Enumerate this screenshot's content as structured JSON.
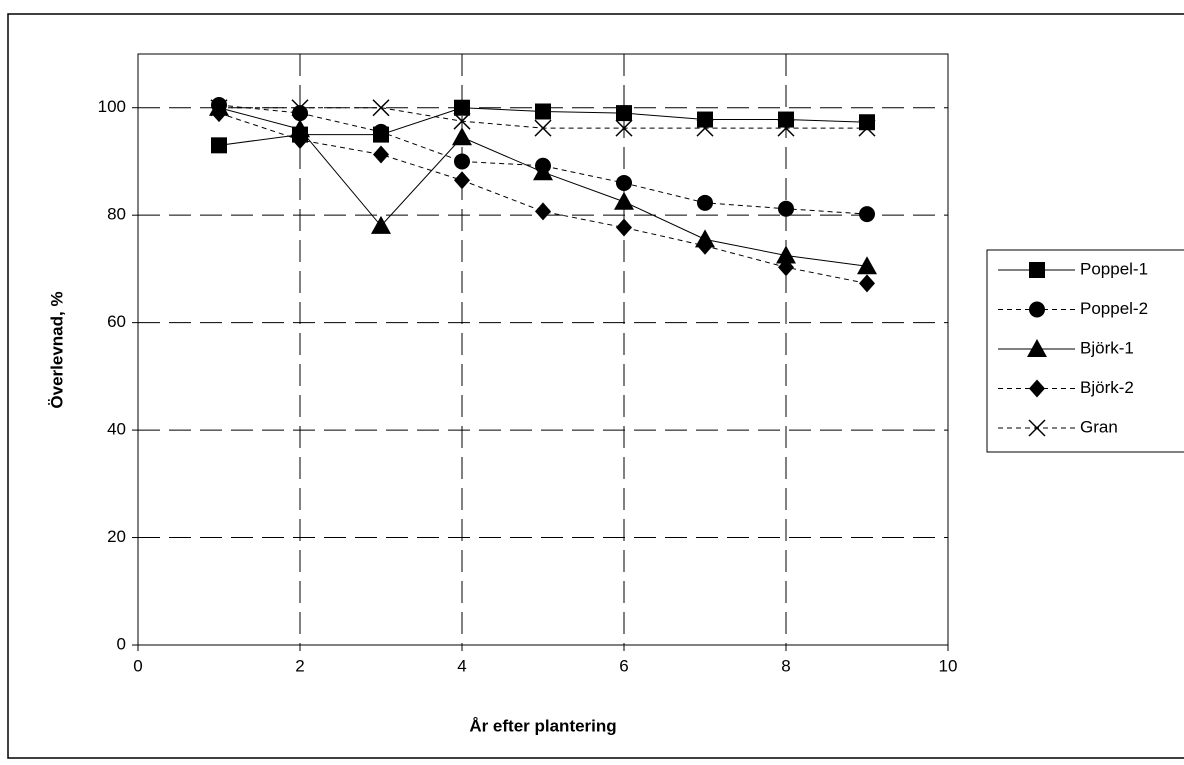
{
  "chart_data": {
    "type": "line",
    "x_label": "År efter plantering",
    "y_label": "Överlevnad, %",
    "x": [
      1,
      2,
      3,
      4,
      5,
      6,
      7,
      8,
      9
    ],
    "series": [
      {
        "name": "Poppel-1",
        "color": "#000000",
        "linestyle": "solid",
        "marker": "square",
        "values": [
          93,
          95,
          95,
          100,
          99.3,
          99,
          97.8,
          97.8,
          97.3
        ]
      },
      {
        "name": "Poppel-2",
        "color": "#000000",
        "linestyle": "dashed",
        "marker": "circle",
        "values": [
          100.5,
          99,
          95.5,
          90,
          89.2,
          86,
          82.3,
          81.2,
          80.2
        ]
      },
      {
        "name": "Björk-1",
        "color": "#000000",
        "linestyle": "solid",
        "marker": "triangle",
        "values": [
          100,
          96,
          78,
          94.5,
          88,
          82.5,
          75.5,
          72.5,
          70.5
        ]
      },
      {
        "name": "Björk-2",
        "color": "#000000",
        "linestyle": "dashed",
        "marker": "diamond",
        "values": [
          99,
          94,
          91.3,
          86.5,
          80.7,
          77.7,
          74.3,
          70.3,
          67.3
        ]
      },
      {
        "name": "Gran",
        "color": "#000000",
        "linestyle": "dashed",
        "marker": "x",
        "values": [
          100,
          100,
          100,
          97.5,
          96.2,
          96.2,
          96.2,
          96.2,
          96.2
        ]
      }
    ],
    "xlim": [
      0,
      10
    ],
    "xticks": [
      0,
      2,
      4,
      6,
      8,
      10
    ],
    "ylim": [
      0,
      110
    ],
    "yticks": [
      0,
      20,
      40,
      60,
      80,
      100
    ],
    "grid": true,
    "legend": "right"
  }
}
